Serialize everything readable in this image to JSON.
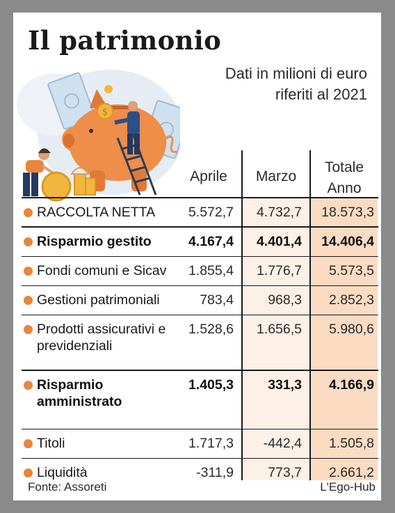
{
  "title": "Il patrimonio",
  "subtitle": "Dati in milioni di euro riferiti al 2021",
  "source": "Fonte: Assoreti",
  "brand": "L'Ego-Hub",
  "colors": {
    "accent": "#e8863b",
    "highlight_light": "#fdf1e7",
    "highlight_dark": "#fbdcc3"
  },
  "illustration": "piggy-bank-savings-illustration",
  "chart_data": {
    "type": "table",
    "columns": [
      "Aprile",
      "Marzo",
      "Totale Anno"
    ],
    "rows": [
      {
        "label": "RACCOLTA NETTA",
        "bold": false,
        "values": [
          "5.572,7",
          "4.732,7",
          "18.573,3"
        ]
      },
      {
        "label": "Risparmio gestito",
        "bold": true,
        "values": [
          "4.167,4",
          "4.401,4",
          "14.406,4"
        ]
      },
      {
        "label": "Fondi comuni e Sicav",
        "bold": false,
        "values": [
          "1.855,4",
          "1.776,7",
          "5.573,5"
        ]
      },
      {
        "label": "Gestioni patrimoniali",
        "bold": false,
        "values": [
          "783,4",
          "968,3",
          "2.852,3"
        ]
      },
      {
        "label": "Prodotti assicurativi e previdenziali",
        "bold": false,
        "values": [
          "1.528,6",
          "1.656,5",
          "5.980,6"
        ]
      },
      {
        "label": "Risparmio amministrato",
        "bold": true,
        "values": [
          "1.405,3",
          "331,3",
          "4.166,9"
        ]
      },
      {
        "label": "Titoli",
        "bold": false,
        "values": [
          "1.717,3",
          "-442,4",
          "1.505,8"
        ]
      },
      {
        "label": "Liquidità",
        "bold": false,
        "values": [
          "-311,9",
          "773,7",
          "2.661,2"
        ]
      }
    ]
  }
}
